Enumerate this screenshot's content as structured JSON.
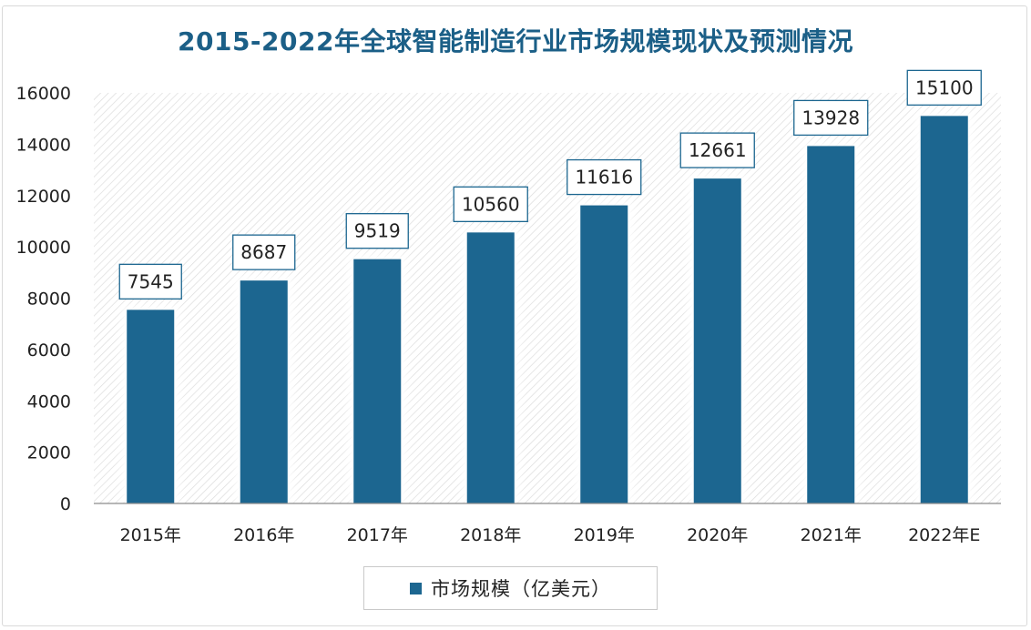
{
  "chart_data": {
    "type": "bar",
    "title": "2015-2022年全球智能制造行业市场规模现状及预测情况",
    "categories": [
      "2015年",
      "2016年",
      "2017年",
      "2018年",
      "2019年",
      "2020年",
      "2021年",
      "2022年E"
    ],
    "series": [
      {
        "name": "市场规模（亿美元）",
        "values": [
          7545,
          8687,
          9519,
          10560,
          11616,
          12661,
          13928,
          15100
        ]
      }
    ],
    "data_labels": [
      "7545",
      "8687",
      "9519",
      "10560",
      "11616",
      "12661",
      "13928",
      "15100"
    ],
    "y_ticks": [
      "0",
      "2000",
      "4000",
      "6000",
      "8000",
      "10000",
      "12000",
      "14000",
      "16000"
    ],
    "ylim": [
      0,
      16000
    ],
    "xlabel": "",
    "ylabel": "",
    "grid": false,
    "legend_position": "bottom",
    "colors": {
      "bar": "#1c6690",
      "title": "#1b5f87",
      "label_border": "#1c6690"
    }
  }
}
